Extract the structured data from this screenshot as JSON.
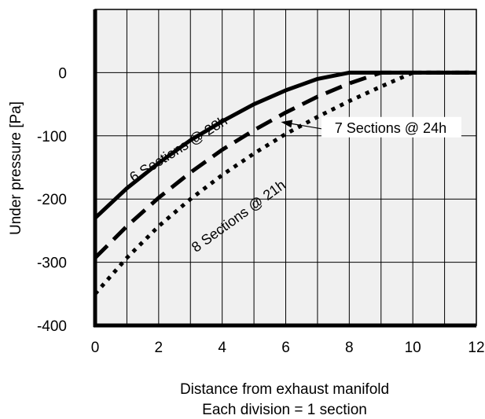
{
  "chart_data": {
    "type": "line",
    "title": "",
    "xlabel": "Distance from exhaust manifold",
    "xlabel_line2": "Each division = 1 section",
    "ylabel": "Under pressure [Pa]",
    "xlim": [
      0,
      12
    ],
    "ylim": [
      -400,
      0
    ],
    "ylim_plot_top": 100,
    "x_ticks": [
      0,
      2,
      4,
      6,
      8,
      10,
      12
    ],
    "x_tick_labels": [
      "0",
      "2",
      "4",
      "6",
      "8",
      "10",
      "12"
    ],
    "y_ticks": [
      0,
      -100,
      -200,
      -300,
      -400
    ],
    "y_tick_labels": [
      "0",
      "-100",
      "-200",
      "-300",
      "-400"
    ],
    "x_grid_step": 1,
    "y_grid_step": 100,
    "grid": true,
    "plot_background": "#f0f0f0",
    "series": [
      {
        "name": "6 Sections @ 28h",
        "style": "solid",
        "x": [
          0,
          1,
          2,
          3,
          4,
          5,
          6,
          7,
          8,
          12
        ],
        "y": [
          -230,
          -183,
          -143,
          -107,
          -77,
          -50,
          -28,
          -10,
          0,
          0
        ]
      },
      {
        "name": "7 Sections @ 24h",
        "style": "dashed",
        "x": [
          0,
          1,
          2,
          3,
          4,
          5,
          6,
          7,
          8,
          9,
          12
        ],
        "y": [
          -293,
          -243,
          -198,
          -158,
          -122,
          -91,
          -63,
          -38,
          -17,
          0,
          0
        ]
      },
      {
        "name": "8 Sections @ 21h",
        "style": "dotted",
        "x": [
          0,
          1,
          2,
          3,
          4,
          5,
          6,
          7,
          8,
          9,
          10,
          12
        ],
        "y": [
          -350,
          -293,
          -243,
          -200,
          -162,
          -128,
          -97,
          -70,
          -45,
          -22,
          0,
          0
        ]
      }
    ],
    "annotations": [
      {
        "text": "6 Sections @ 28h",
        "series": 0,
        "at_x": 2.7,
        "at_y": -127
      },
      {
        "text": "7 Sections @ 24h",
        "series": 1,
        "at_x": 9.4,
        "at_y": -95,
        "arrow_to_x": 5.85,
        "arrow_to_y": -78
      },
      {
        "text": "8 Sections @ 21h",
        "series": 2,
        "at_x": 4.6,
        "at_y": -233
      }
    ]
  }
}
